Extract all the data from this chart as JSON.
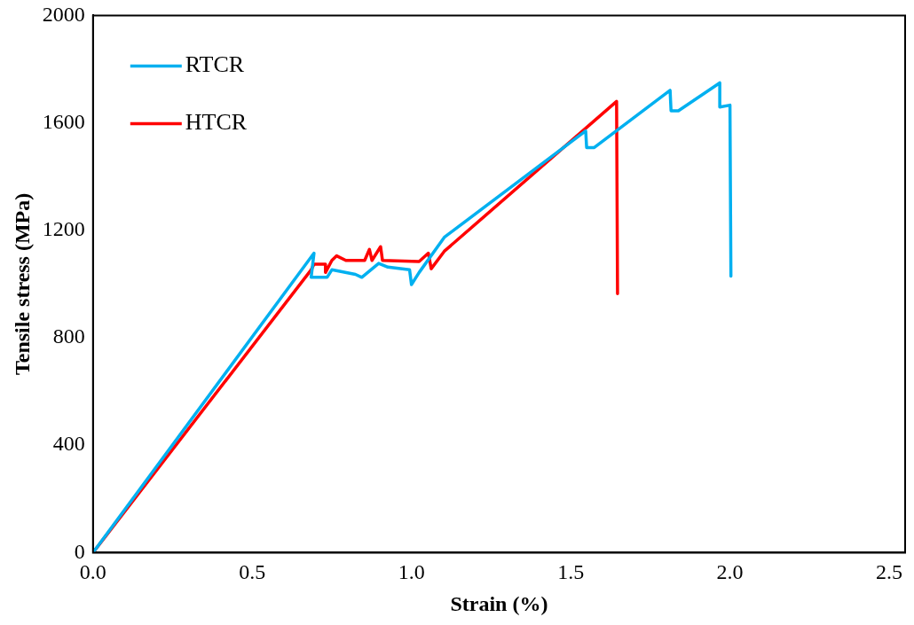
{
  "chart_data": {
    "type": "line",
    "xlabel": "Strain (%)",
    "ylabel": "Tensile stress (MPa)",
    "xlim": [
      0,
      2.55
    ],
    "xticks": [
      {
        "value": 0,
        "label": "0.0"
      },
      {
        "value": 0.5,
        "label": "0.5"
      },
      {
        "value": 1,
        "label": "1.0"
      },
      {
        "value": 1.5,
        "label": "1.5"
      },
      {
        "value": 2,
        "label": "2.0"
      },
      {
        "value": 2.5,
        "label": "2.5"
      }
    ],
    "ylim": [
      0,
      2000
    ],
    "yticks": [
      0,
      400,
      800,
      1200,
      1600,
      2000
    ],
    "grid": false,
    "legend": "top left",
    "marker": "none",
    "line_style": "solid",
    "series": [
      {
        "name": "RTCR",
        "color": "#00b0f0",
        "x": [
          0,
          0.694,
          0.685,
          0.735,
          0.75,
          0.824,
          0.844,
          0.897,
          0.926,
          0.994,
          1.0,
          1.024,
          1.103,
          1.547,
          1.55,
          1.574,
          1.812,
          1.815,
          1.838,
          1.968,
          1.968,
          2.0,
          2.003
        ],
        "values": [
          0,
          1115,
          1025,
          1025,
          1053,
          1036,
          1025,
          1077,
          1063,
          1053,
          998,
          1043,
          1174,
          1570,
          1508,
          1508,
          1721,
          1645,
          1645,
          1749,
          1659,
          1666,
          1029
        ]
      },
      {
        "name": "HTCR",
        "color": "#ff0000",
        "x": [
          0,
          0.685,
          0.694,
          0.73,
          0.73,
          0.75,
          0.765,
          0.794,
          0.853,
          0.868,
          0.876,
          0.903,
          0.909,
          1.024,
          1.053,
          1.062,
          1.103,
          1.644,
          1.647
        ],
        "values": [
          0,
          1053,
          1074,
          1074,
          1043,
          1088,
          1105,
          1088,
          1088,
          1129,
          1088,
          1139,
          1088,
          1084,
          1115,
          1057,
          1122,
          1680,
          964
        ]
      }
    ]
  }
}
